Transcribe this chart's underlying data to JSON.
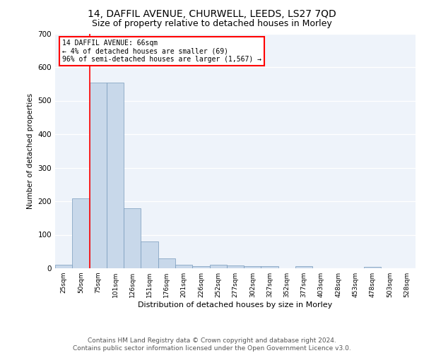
{
  "title": "14, DAFFIL AVENUE, CHURWELL, LEEDS, LS27 7QD",
  "subtitle": "Size of property relative to detached houses in Morley",
  "xlabel": "Distribution of detached houses by size in Morley",
  "ylabel": "Number of detached properties",
  "bar_color": "#c8d8ea",
  "bar_edge_color": "#7799bb",
  "bg_color": "#eef3fa",
  "categories": [
    "25sqm",
    "50sqm",
    "75sqm",
    "101sqm",
    "126sqm",
    "151sqm",
    "176sqm",
    "201sqm",
    "226sqm",
    "252sqm",
    "277sqm",
    "302sqm",
    "327sqm",
    "352sqm",
    "377sqm",
    "403sqm",
    "428sqm",
    "453sqm",
    "478sqm",
    "503sqm",
    "528sqm"
  ],
  "values": [
    11,
    209,
    553,
    553,
    180,
    80,
    29,
    10,
    6,
    10,
    8,
    6,
    6,
    0,
    6,
    0,
    0,
    0,
    5,
    0,
    0
  ],
  "ylim": [
    0,
    700
  ],
  "yticks": [
    0,
    100,
    200,
    300,
    400,
    500,
    600,
    700
  ],
  "pct_smaller": "4% of detached houses are smaller (69)",
  "pct_larger": "96% of semi-detached houses are larger (1,567)",
  "vline_x": 1.5,
  "footer": "Contains HM Land Registry data © Crown copyright and database right 2024.\nContains public sector information licensed under the Open Government Licence v3.0.",
  "footnote_fontsize": 6.5,
  "title_fontsize": 10,
  "subtitle_fontsize": 9
}
